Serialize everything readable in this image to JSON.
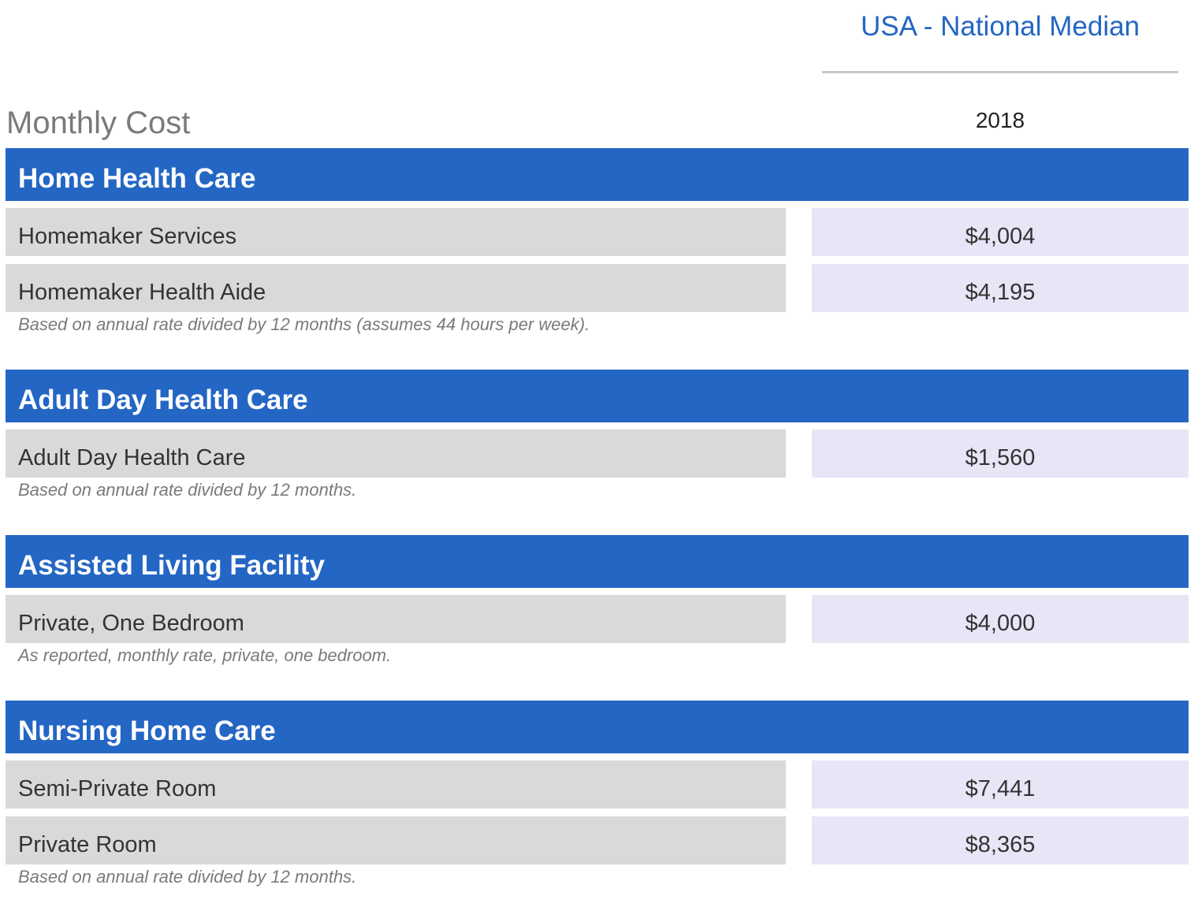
{
  "header": {
    "region": "USA - National Median",
    "title": "Monthly Cost",
    "year": "2018"
  },
  "colors": {
    "accent": "#2466c4",
    "label_bg": "#d9d9d9",
    "value_bg": "#e7e6f7",
    "note_text": "#7a7a7a"
  },
  "sections": [
    {
      "title": "Home Health Care",
      "rows": [
        {
          "label": "Homemaker Services",
          "value": "$4,004"
        },
        {
          "label": "Homemaker Health Aide",
          "value": "$4,195"
        }
      ],
      "note": "Based on annual rate divided by 12 months (assumes 44 hours per week)."
    },
    {
      "title": "Adult Day Health Care",
      "rows": [
        {
          "label": "Adult Day Health Care",
          "value": "$1,560"
        }
      ],
      "note": "Based on annual rate divided by 12 months."
    },
    {
      "title": "Assisted Living Facility",
      "rows": [
        {
          "label": "Private, One Bedroom",
          "value": "$4,000"
        }
      ],
      "note": "As reported, monthly rate, private, one bedroom."
    },
    {
      "title": "Nursing Home Care",
      "rows": [
        {
          "label": "Semi-Private Room",
          "value": "$7,441"
        },
        {
          "label": "Private Room",
          "value": "$8,365"
        }
      ],
      "note": "Based on annual rate divided by 12 months."
    }
  ]
}
